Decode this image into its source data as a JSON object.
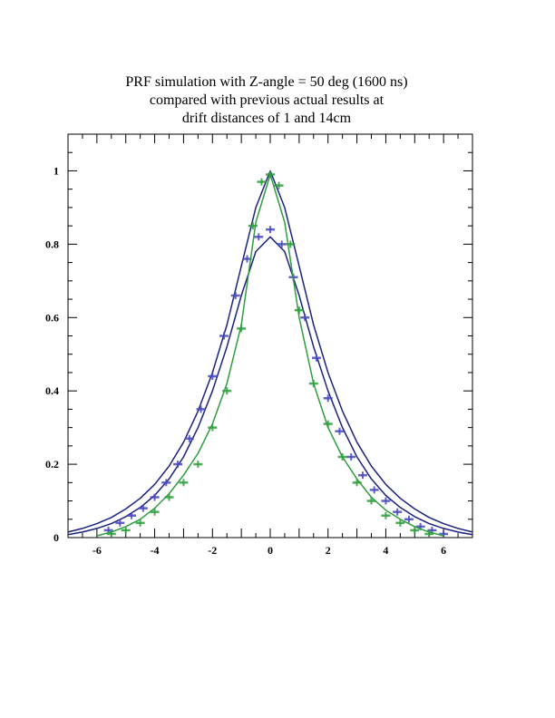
{
  "chart_data": {
    "type": "line",
    "title_lines": [
      "PRF simulation with Z-angle = 50 deg (1600 ns)",
      "compared with previous actual results at",
      "drift distances of 1 and 14cm"
    ],
    "xlabel": "",
    "ylabel": "",
    "xlim": [
      -7,
      7
    ],
    "ylim": [
      0,
      1.1
    ],
    "x_ticks": [
      -6,
      -4,
      -2,
      0,
      2,
      4,
      6
    ],
    "y_ticks": [
      0,
      0.2,
      0.4,
      0.6,
      0.8,
      1
    ],
    "x_tick_labels": [
      "-6",
      "-4",
      "-2",
      "0",
      "2",
      "4",
      "6"
    ],
    "y_tick_labels": [
      "0",
      "0.2",
      "0.4",
      "0.6",
      "0.8",
      "1"
    ],
    "grid": false,
    "colors": {
      "navy": "#1a237e",
      "blue": "#4848c0",
      "green": "#2e9e3e",
      "axis": "#000000"
    },
    "series": [
      {
        "style": "curve",
        "color": "#1a237e",
        "x": [
          -7,
          -6.5,
          -6,
          -5.5,
          -5,
          -4.5,
          -4,
          -3.5,
          -3,
          -2.5,
          -2,
          -1.5,
          -1,
          -0.5,
          0,
          0.5,
          1,
          1.5,
          2,
          2.5,
          3,
          3.5,
          4,
          4.5,
          5,
          5.5,
          6,
          6.5,
          7
        ],
        "y": [
          0.015,
          0.025,
          0.038,
          0.055,
          0.078,
          0.107,
          0.145,
          0.195,
          0.26,
          0.345,
          0.45,
          0.58,
          0.74,
          0.9,
          1.0,
          0.9,
          0.74,
          0.58,
          0.45,
          0.345,
          0.26,
          0.195,
          0.145,
          0.107,
          0.078,
          0.055,
          0.038,
          0.025,
          0.015
        ]
      },
      {
        "style": "curve",
        "color": "#1a237e",
        "x": [
          -7,
          -6.5,
          -6,
          -5.5,
          -5,
          -4.5,
          -4,
          -3.5,
          -3,
          -2.5,
          -2,
          -1.5,
          -1,
          -0.5,
          0,
          0.5,
          1,
          1.5,
          2,
          2.5,
          3,
          3.5,
          4,
          4.5,
          5,
          5.5,
          6,
          6.5,
          7
        ],
        "y": [
          0.008,
          0.015,
          0.025,
          0.038,
          0.057,
          0.082,
          0.115,
          0.16,
          0.22,
          0.3,
          0.4,
          0.52,
          0.66,
          0.78,
          0.82,
          0.78,
          0.66,
          0.52,
          0.4,
          0.3,
          0.22,
          0.16,
          0.115,
          0.082,
          0.057,
          0.038,
          0.025,
          0.015,
          0.008
        ]
      },
      {
        "style": "markers",
        "color": "#4848c0",
        "x": [
          -5.6,
          -5.2,
          -4.8,
          -4.4,
          -4.0,
          -3.6,
          -3.2,
          -2.8,
          -2.4,
          -2.0,
          -1.6,
          -1.2,
          -0.8,
          -0.4,
          0.0,
          0.4,
          0.8,
          1.2,
          1.6,
          2.0,
          2.4,
          2.8,
          3.2,
          3.6,
          4.0,
          4.4,
          4.8,
          5.2,
          5.6,
          6.0
        ],
        "y": [
          0.02,
          0.04,
          0.06,
          0.08,
          0.11,
          0.15,
          0.2,
          0.27,
          0.35,
          0.44,
          0.55,
          0.66,
          0.76,
          0.82,
          0.84,
          0.8,
          0.71,
          0.6,
          0.49,
          0.38,
          0.29,
          0.22,
          0.17,
          0.13,
          0.1,
          0.07,
          0.05,
          0.03,
          0.02,
          0.01
        ]
      },
      {
        "style": "curve",
        "color": "#2e9e3e",
        "x": [
          -6,
          -5.5,
          -5,
          -4.5,
          -4,
          -3.5,
          -3,
          -2.5,
          -2,
          -1.5,
          -1,
          -0.5,
          0,
          0.5,
          1,
          1.5,
          2,
          2.5,
          3,
          3.5,
          4,
          4.5,
          5,
          5.5,
          6
        ],
        "y": [
          0.005,
          0.015,
          0.03,
          0.05,
          0.08,
          0.12,
          0.17,
          0.23,
          0.31,
          0.42,
          0.58,
          0.86,
          0.99,
          0.86,
          0.6,
          0.42,
          0.3,
          0.22,
          0.16,
          0.11,
          0.075,
          0.05,
          0.03,
          0.015,
          0.005
        ]
      },
      {
        "style": "markers",
        "color": "#2e9e3e",
        "x": [
          -5.5,
          -5.0,
          -4.5,
          -4.0,
          -3.5,
          -3.0,
          -2.5,
          -2.0,
          -1.5,
          -1.0,
          -0.6,
          -0.3,
          0.0,
          0.3,
          0.7,
          1.0,
          1.5,
          2.0,
          2.5,
          3.0,
          3.5,
          4.0,
          4.5,
          5.0,
          5.5
        ],
        "y": [
          0.01,
          0.02,
          0.04,
          0.07,
          0.11,
          0.15,
          0.2,
          0.3,
          0.4,
          0.57,
          0.85,
          0.97,
          0.99,
          0.96,
          0.8,
          0.62,
          0.42,
          0.31,
          0.22,
          0.15,
          0.1,
          0.06,
          0.04,
          0.02,
          0.01
        ]
      }
    ]
  }
}
